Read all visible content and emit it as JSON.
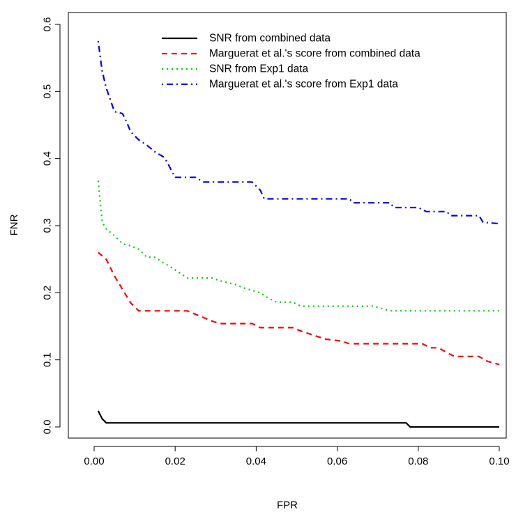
{
  "chart_data": {
    "type": "line",
    "title": "",
    "xlabel": "FPR",
    "ylabel": "FNR",
    "xlim": [
      0,
      0.1
    ],
    "ylim": [
      0,
      0.6
    ],
    "x_ticks": [
      0.0,
      0.02,
      0.04,
      0.06,
      0.08,
      0.1
    ],
    "x_tick_labels": [
      "0.00",
      "0.02",
      "0.04",
      "0.06",
      "0.08",
      "0.10"
    ],
    "y_ticks": [
      0.0,
      0.1,
      0.2,
      0.3,
      0.4,
      0.5,
      0.6
    ],
    "y_tick_labels": [
      "0.0",
      "0.1",
      "0.2",
      "0.3",
      "0.4",
      "0.5",
      "0.6"
    ],
    "grid": false,
    "legend_position": "top-right",
    "series": [
      {
        "name": "SNR from combined data",
        "color": "#000000",
        "dash": "solid",
        "x": [
          0.001,
          0.002,
          0.003,
          0.077,
          0.078,
          0.1
        ],
        "y": [
          0.024,
          0.012,
          0.006,
          0.006,
          0.0,
          0.0
        ]
      },
      {
        "name": "Marguerat et al.'s score from combined data",
        "color": "#ff0000",
        "dash": "dashed",
        "x": [
          0.001,
          0.003,
          0.005,
          0.007,
          0.009,
          0.011,
          0.023,
          0.025,
          0.029,
          0.031,
          0.039,
          0.041,
          0.049,
          0.051,
          0.053,
          0.055,
          0.057,
          0.061,
          0.063,
          0.081,
          0.083,
          0.085,
          0.087,
          0.089,
          0.091,
          0.095,
          0.097,
          0.1
        ],
        "y": [
          0.26,
          0.25,
          0.225,
          0.205,
          0.185,
          0.173,
          0.173,
          0.168,
          0.158,
          0.154,
          0.154,
          0.148,
          0.148,
          0.143,
          0.139,
          0.135,
          0.131,
          0.128,
          0.124,
          0.124,
          0.118,
          0.118,
          0.111,
          0.105,
          0.105,
          0.105,
          0.098,
          0.093
        ]
      },
      {
        "name": "SNR from Exp1 data",
        "color": "#00cd00",
        "dash": "dotted",
        "x": [
          0.001,
          0.002,
          0.003,
          0.005,
          0.007,
          0.009,
          0.011,
          0.013,
          0.015,
          0.017,
          0.019,
          0.021,
          0.023,
          0.025,
          0.029,
          0.031,
          0.035,
          0.037,
          0.041,
          0.043,
          0.045,
          0.049,
          0.051,
          0.069,
          0.073,
          0.1
        ],
        "y": [
          0.367,
          0.305,
          0.295,
          0.285,
          0.273,
          0.27,
          0.265,
          0.253,
          0.253,
          0.245,
          0.238,
          0.23,
          0.222,
          0.222,
          0.222,
          0.218,
          0.212,
          0.207,
          0.2,
          0.192,
          0.186,
          0.186,
          0.18,
          0.18,
          0.173,
          0.173
        ]
      },
      {
        "name": "Marguerat et al.'s score from Exp1 data",
        "color": "#0000ff",
        "dash": "dotdash",
        "x": [
          0.001,
          0.002,
          0.003,
          0.005,
          0.007,
          0.008,
          0.009,
          0.011,
          0.013,
          0.015,
          0.017,
          0.018,
          0.019,
          0.02,
          0.025,
          0.027,
          0.03,
          0.039,
          0.041,
          0.042,
          0.063,
          0.064,
          0.073,
          0.074,
          0.079,
          0.08,
          0.082,
          0.087,
          0.088,
          0.093,
          0.095,
          0.096,
          0.1
        ],
        "y": [
          0.575,
          0.53,
          0.505,
          0.47,
          0.467,
          0.455,
          0.44,
          0.428,
          0.42,
          0.41,
          0.403,
          0.395,
          0.383,
          0.372,
          0.372,
          0.365,
          0.365,
          0.365,
          0.353,
          0.34,
          0.34,
          0.334,
          0.334,
          0.327,
          0.327,
          0.327,
          0.321,
          0.321,
          0.315,
          0.315,
          0.315,
          0.305,
          0.303
        ]
      }
    ]
  }
}
